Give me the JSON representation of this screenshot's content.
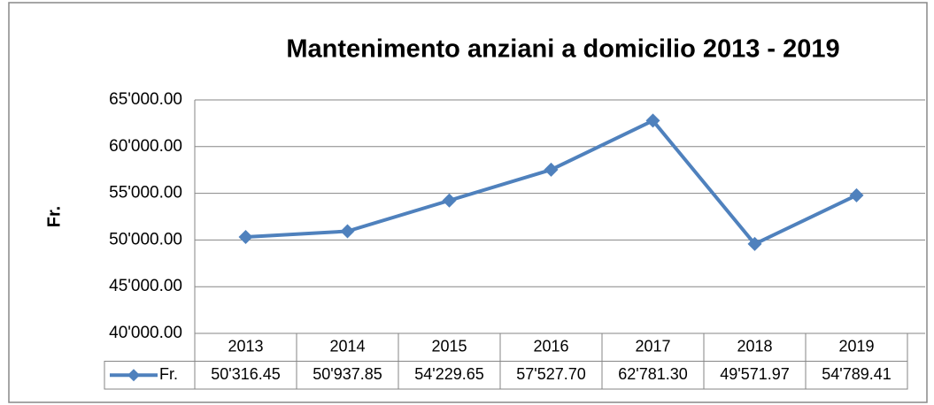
{
  "chart_data": {
    "type": "line",
    "title": "Mantenimento anziani a domicilio 2013 - 2019",
    "y_label": "Fr.",
    "categories": [
      "2013",
      "2014",
      "2015",
      "2016",
      "2017",
      "2018",
      "2019"
    ],
    "series": [
      {
        "name": "Fr.",
        "color": "#4f81bd",
        "values": [
          50316.45,
          50937.85,
          54229.65,
          57527.7,
          62781.3,
          49571.97,
          54789.41
        ],
        "value_labels": [
          "50'316.45",
          "50'937.85",
          "54'229.65",
          "57'527.70",
          "62'781.30",
          "49'571.97",
          "54'789.41"
        ]
      }
    ],
    "ylim": [
      40000,
      65000
    ],
    "yticks": [
      {
        "value": 40000,
        "label": "40'000.00"
      },
      {
        "value": 45000,
        "label": "45'000.00"
      },
      {
        "value": 50000,
        "label": "50'000.00"
      },
      {
        "value": 55000,
        "label": "55'000.00"
      },
      {
        "value": 60000,
        "label": "60'000.00"
      },
      {
        "value": 65000,
        "label": "65'000.00"
      }
    ],
    "grid": true
  }
}
